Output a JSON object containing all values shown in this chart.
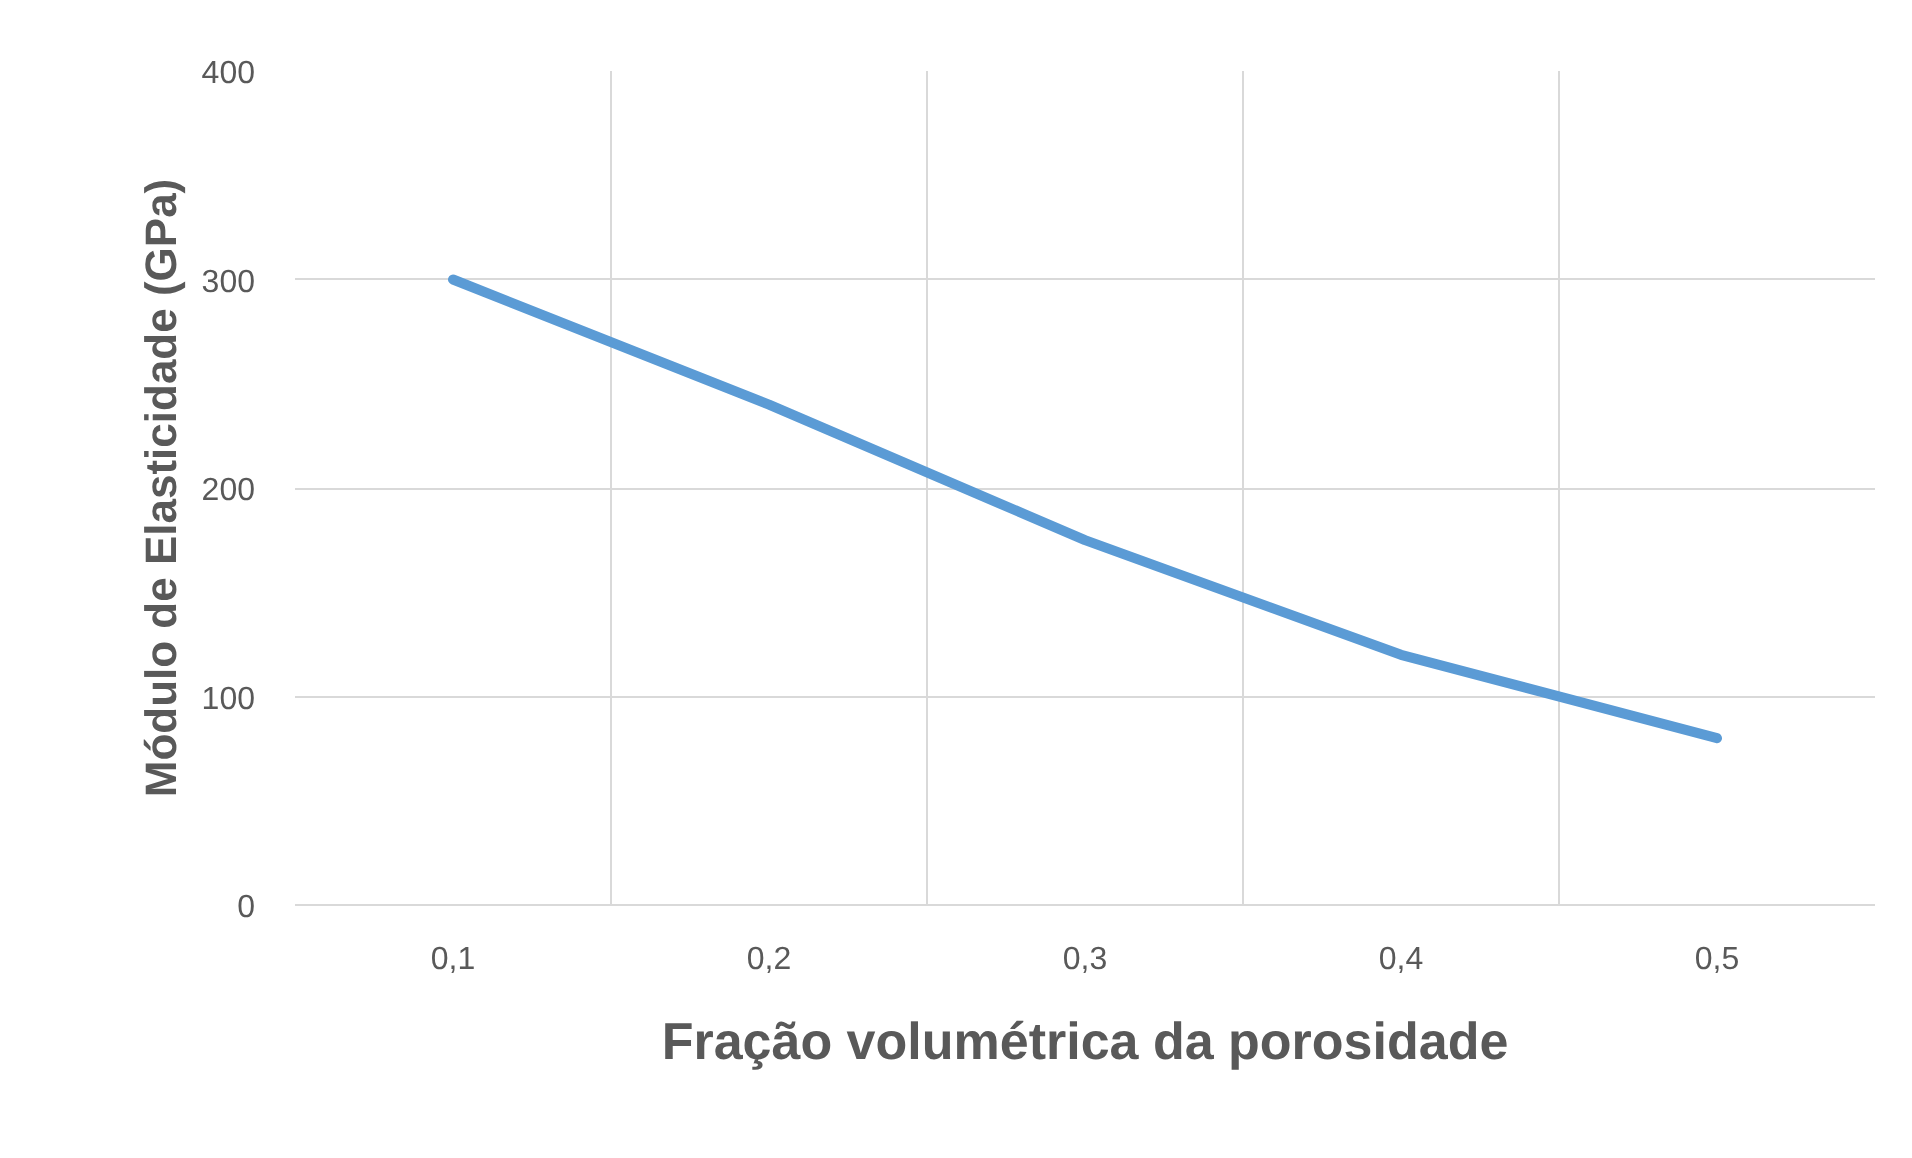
{
  "chart_data": {
    "type": "line",
    "xlabel": "Fração volumétrica da porosidade",
    "ylabel": "Módulo de Elasticidade (GPa)",
    "categories": [
      "0,1",
      "0,2",
      "0,3",
      "0,4",
      "0,5"
    ],
    "series": [
      {
        "color": "#5b9bd5",
        "values": [
          300,
          240,
          175,
          120,
          80
        ]
      }
    ],
    "ylim": [
      0,
      400
    ],
    "yticks": [
      0,
      100,
      200,
      300,
      400
    ],
    "grid": true,
    "marker": "none",
    "line_style": "solid"
  }
}
